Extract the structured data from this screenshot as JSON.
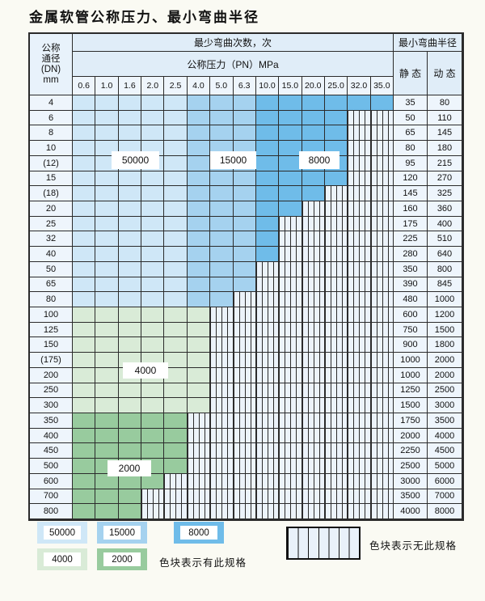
{
  "page": {
    "title": "金属软管公称压力、最小弯曲半径",
    "background": "#fafaf3"
  },
  "table": {
    "corner_header": {
      "lines": [
        "公称",
        "通径",
        "(DN)",
        "mm"
      ]
    },
    "cycles_header": "最少弯曲次数，次",
    "pressure_header": "公称压力（PN）MPa",
    "radius_header": "最小弯曲半径",
    "static_header": "静 态",
    "dynamic_header": "动 态",
    "pressure_columns": [
      "0.6",
      "1.0",
      "1.6",
      "2.0",
      "2.5",
      "4.0",
      "5.0",
      "6.3",
      "10.0",
      "15.0",
      "20.0",
      "25.0",
      "32.0",
      "35.0"
    ],
    "blue_zones": [
      {
        "cycles": "50000",
        "through_col": 5
      },
      {
        "cycles": "15000",
        "through_col": 8
      },
      {
        "cycles": "8000",
        "through_col": 14
      }
    ],
    "rows": [
      {
        "dn": "4",
        "through": 14,
        "palette": "blue",
        "static": "35",
        "dynamic": "80"
      },
      {
        "dn": "6",
        "through": 12,
        "palette": "blue",
        "static": "50",
        "dynamic": "110"
      },
      {
        "dn": "8",
        "through": 12,
        "palette": "blue",
        "static": "65",
        "dynamic": "145"
      },
      {
        "dn": "10",
        "through": 12,
        "palette": "blue",
        "static": "80",
        "dynamic": "180"
      },
      {
        "dn": "(12)",
        "through": 12,
        "palette": "blue",
        "static": "95",
        "dynamic": "215"
      },
      {
        "dn": "15",
        "through": 12,
        "palette": "blue",
        "static": "120",
        "dynamic": "270"
      },
      {
        "dn": "(18)",
        "through": 11,
        "palette": "blue",
        "static": "145",
        "dynamic": "325"
      },
      {
        "dn": "20",
        "through": 10,
        "palette": "blue",
        "static": "160",
        "dynamic": "360"
      },
      {
        "dn": "25",
        "through": 9,
        "palette": "blue",
        "static": "175",
        "dynamic": "400"
      },
      {
        "dn": "32",
        "through": 9,
        "palette": "blue",
        "static": "225",
        "dynamic": "510"
      },
      {
        "dn": "40",
        "through": 9,
        "palette": "blue",
        "static": "280",
        "dynamic": "640"
      },
      {
        "dn": "50",
        "through": 8,
        "palette": "blue",
        "static": "350",
        "dynamic": "800"
      },
      {
        "dn": "65",
        "through": 8,
        "palette": "blue",
        "static": "390",
        "dynamic": "845"
      },
      {
        "dn": "80",
        "through": 7,
        "palette": "blue",
        "static": "480",
        "dynamic": "1000"
      },
      {
        "dn": "100",
        "through": 6,
        "palette": "green4000",
        "static": "600",
        "dynamic": "1200"
      },
      {
        "dn": "125",
        "through": 6,
        "palette": "green4000",
        "static": "750",
        "dynamic": "1500"
      },
      {
        "dn": "150",
        "through": 6,
        "palette": "green4000",
        "static": "900",
        "dynamic": "1800"
      },
      {
        "dn": "(175)",
        "through": 6,
        "palette": "green4000",
        "static": "1000",
        "dynamic": "2000"
      },
      {
        "dn": "200",
        "through": 6,
        "palette": "green4000",
        "static": "1000",
        "dynamic": "2000"
      },
      {
        "dn": "250",
        "through": 6,
        "palette": "green4000",
        "static": "1250",
        "dynamic": "2500"
      },
      {
        "dn": "300",
        "through": 6,
        "palette": "green4000",
        "static": "1500",
        "dynamic": "3000"
      },
      {
        "dn": "350",
        "through": 5,
        "palette": "green2000",
        "static": "1750",
        "dynamic": "3500"
      },
      {
        "dn": "400",
        "through": 5,
        "palette": "green2000",
        "static": "2000",
        "dynamic": "4000"
      },
      {
        "dn": "450",
        "through": 5,
        "palette": "green2000",
        "static": "2250",
        "dynamic": "4500"
      },
      {
        "dn": "500",
        "through": 5,
        "palette": "green2000",
        "static": "2500",
        "dynamic": "5000"
      },
      {
        "dn": "600",
        "through": 4,
        "palette": "green2000",
        "static": "3000",
        "dynamic": "6000"
      },
      {
        "dn": "700",
        "through": 3,
        "palette": "green2000",
        "static": "3500",
        "dynamic": "7000"
      },
      {
        "dn": "800",
        "through": 3,
        "palette": "green2000",
        "static": "4000",
        "dynamic": "8000"
      }
    ]
  },
  "overlay_labels": [
    {
      "text": "50000"
    },
    {
      "text": "15000"
    },
    {
      "text": "8000"
    },
    {
      "text": "4000"
    },
    {
      "text": "2000"
    }
  ],
  "legend": {
    "swatches": [
      {
        "cycles": "50000"
      },
      {
        "cycles": "15000"
      },
      {
        "cycles": "8000"
      },
      {
        "cycles": "4000"
      },
      {
        "cycles": "2000"
      }
    ],
    "has_spec_caption": "色块表示有此规格",
    "no_spec_caption": "色块表示无此规格"
  },
  "colors": {
    "cycles": {
      "50000": "#cfe7f7",
      "15000": "#a5d2ef",
      "8000": "#6fbce9",
      "4000": "#d9ebd7",
      "2000": "#98cb9e"
    },
    "grid_line": "#2b2b2b"
  }
}
